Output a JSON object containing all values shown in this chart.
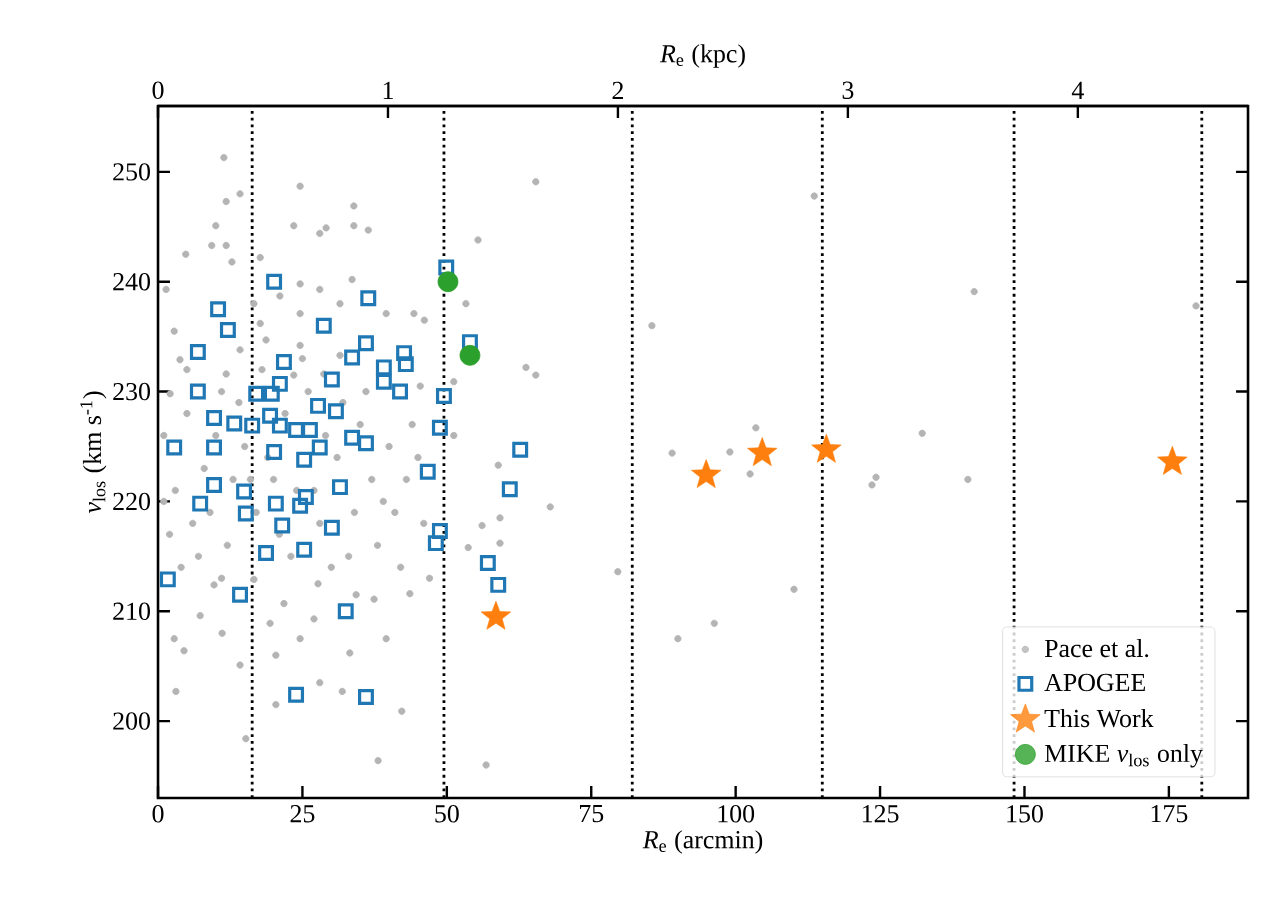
{
  "chart_data": {
    "type": "scatter",
    "xlabel": "*R*$_{e}$ (arcmin)",
    "ylabel": "*v*$_{los}$ (km s$^{-1}$)",
    "x2label": "*R*$_{e}$ (kpc)",
    "xlim": [
      0,
      188.7
    ],
    "ylim": [
      193,
      256
    ],
    "x2lim": [
      0,
      4.74
    ],
    "xticks": [
      0,
      25,
      50,
      75,
      100,
      125,
      150,
      175
    ],
    "yticks": [
      200,
      210,
      220,
      230,
      240,
      250
    ],
    "x2ticks": [
      0,
      1,
      2,
      3,
      4
    ],
    "grid": false,
    "legend": "bottom right",
    "ref_lines": [
      {
        "axis": "x",
        "value": 16.3,
        "color": "#000000",
        "line_style": "dotted"
      },
      {
        "axis": "x",
        "value": 49.5,
        "color": "#000000",
        "line_style": "dotted"
      },
      {
        "axis": "x",
        "value": 82.1,
        "color": "#000000",
        "line_style": "dotted"
      },
      {
        "axis": "x",
        "value": 115,
        "color": "#000000",
        "line_style": "dotted"
      },
      {
        "axis": "x",
        "value": 148.2,
        "color": "#000000",
        "line_style": "dotted"
      },
      {
        "axis": "x",
        "value": 180.7,
        "color": "#000000",
        "line_style": "dotted"
      }
    ],
    "series": [
      {
        "name": "Pace et al.",
        "marker": "circle",
        "color": "#b4b4b4",
        "x": [
          65.4,
          55.4,
          53.3,
          63.7,
          65.4,
          51.2,
          51.2,
          85.5,
          113.6,
          103.5,
          99.0,
          89.0,
          58.9,
          67.9,
          56.1,
          59.2,
          59.2,
          53.7,
          79.6,
          110.1,
          96.3,
          90.0,
          56.8,
          102.5,
          141.3,
          132.3,
          179.7,
          123.6,
          124.3,
          140.2,
          3.1,
          15.2,
          38.1,
          42.2,
          33.2,
          39.5,
          43.6,
          11.1,
          4.5,
          2.8,
          20.4,
          14.2,
          20.4,
          28.0,
          31.9,
          24.6,
          27.7,
          19.4,
          21.8,
          7.3,
          34.3,
          37.4,
          27.0,
          9.7,
          16.6,
          11.4,
          14.2,
          11.8,
          24.6,
          33.9,
          4.8,
          9.3,
          10.0,
          11.8,
          12.8,
          17.7,
          23.5,
          28.0,
          29.1,
          33.9,
          36.4,
          33.6,
          28.0,
          24.6,
          1.4,
          21.1,
          16.6,
          2.8,
          17.7,
          24.6,
          31.5,
          39.5,
          46.1,
          44.3,
          3.8,
          14.2,
          18.7,
          24.6,
          31.5,
          45.4,
          11.8,
          2.1,
          23.5,
          28.7,
          1,
          3,
          5,
          6,
          8,
          11,
          13,
          15,
          17,
          18,
          20,
          22,
          23,
          26,
          27,
          29,
          30,
          32,
          34,
          35,
          37,
          38,
          40,
          41,
          43,
          44,
          46,
          47,
          2,
          4,
          7,
          9,
          12,
          14,
          16,
          19,
          21,
          24,
          28,
          31,
          33,
          36,
          39,
          42,
          45,
          10,
          5,
          25,
          1,
          11
        ],
        "values": [
          249.1,
          243.8,
          238.0,
          232.2,
          231.5,
          230.9,
          226.0,
          236.0,
          247.8,
          226.7,
          224.5,
          224.4,
          223.3,
          219.5,
          217.8,
          218.5,
          216.2,
          215.8,
          213.6,
          212.0,
          208.9,
          207.5,
          196.0,
          222.5,
          239.1,
          226.2,
          237.8,
          221.5,
          222.2,
          222.0,
          202.7,
          198.4,
          196.4,
          200.9,
          206.2,
          207.5,
          211.6,
          208.0,
          206.4,
          207.5,
          201.5,
          205.1,
          206.0,
          203.5,
          202.7,
          207.5,
          212.5,
          208.9,
          210.7,
          209.6,
          211.5,
          211.1,
          209.3,
          212.4,
          212.9,
          251.3,
          248.0,
          247.3,
          248.7,
          246.9,
          242.5,
          243.3,
          245.1,
          243.3,
          241.8,
          242.2,
          245.1,
          244.4,
          244.9,
          245.1,
          244.7,
          240.2,
          239.3,
          239.8,
          239.3,
          238.7,
          238.0,
          235.5,
          236.2,
          237.1,
          238.0,
          237.1,
          236.5,
          237.1,
          232.9,
          233.8,
          234.7,
          234.2,
          233.3,
          230.5,
          231.6,
          229.8,
          231.5,
          231.6,
          226,
          221,
          228,
          218,
          223,
          230,
          222,
          225,
          219,
          232,
          222,
          228,
          215,
          230,
          221,
          226,
          214,
          229,
          219,
          227,
          222,
          216,
          225,
          219,
          222,
          227,
          218,
          213,
          217,
          214,
          215,
          219,
          216,
          229,
          222,
          224,
          217,
          221,
          218,
          224,
          215,
          230,
          220,
          214,
          224,
          226,
          232,
          233,
          220,
          213
        ]
      },
      {
        "name": "APOGEE",
        "marker": "square",
        "color": "#1f77b4",
        "x": [
          20.1,
          10.4,
          12.1,
          6.9,
          6.9,
          28.7,
          36.4,
          36.0,
          33.6,
          21.8,
          39.1,
          42.9,
          42.6,
          39.1,
          41.9,
          30.1,
          21.1,
          17.0,
          19.7,
          27.7,
          30.8,
          9.7,
          13.2,
          16.3,
          19.4,
          21.1,
          23.9,
          26.3,
          33.6,
          36.0,
          2.8,
          9.7,
          20.1,
          25.3,
          28.0,
          49.9,
          54.0,
          49.5,
          48.8,
          46.7,
          9.7,
          14.9,
          15.2,
          7.3,
          20.4,
          24.6,
          25.6,
          31.5,
          21.5,
          30.1,
          25.3,
          18.7,
          48.8,
          48.1,
          1.7,
          14.2,
          32.5,
          23.9,
          36.0,
          62.7,
          60.9,
          57.1,
          58.9
        ],
        "values": [
          240.0,
          237.5,
          235.6,
          233.6,
          230.0,
          236.0,
          238.5,
          234.4,
          233.1,
          232.7,
          232.2,
          232.5,
          233.5,
          230.9,
          230.0,
          231.1,
          230.7,
          229.8,
          229.8,
          228.7,
          228.2,
          227.6,
          227.1,
          226.9,
          227.8,
          226.9,
          226.5,
          226.5,
          225.8,
          225.3,
          224.9,
          224.9,
          224.5,
          223.8,
          224.9,
          241.3,
          234.5,
          229.6,
          226.7,
          222.7,
          221.5,
          220.9,
          218.9,
          219.8,
          219.8,
          219.6,
          220.4,
          221.3,
          217.8,
          217.6,
          215.6,
          215.3,
          217.3,
          216.2,
          212.9,
          211.5,
          210.0,
          202.4,
          202.2,
          224.7,
          221.1,
          214.4,
          212.4
        ]
      },
      {
        "name": "This Work",
        "marker": "star",
        "color": "#ff7f0e",
        "x": [
          94.9,
          104.6,
          115.7,
          175.6,
          58.5
        ],
        "values": [
          222.4,
          224.4,
          224.7,
          223.6,
          209.5
        ]
      },
      {
        "name": "MIKE *v*$_{los}$ only",
        "marker": "circle",
        "color": "#2ca02c",
        "x": [
          50.2,
          54.0
        ],
        "values": [
          240.0,
          233.3
        ]
      }
    ]
  }
}
